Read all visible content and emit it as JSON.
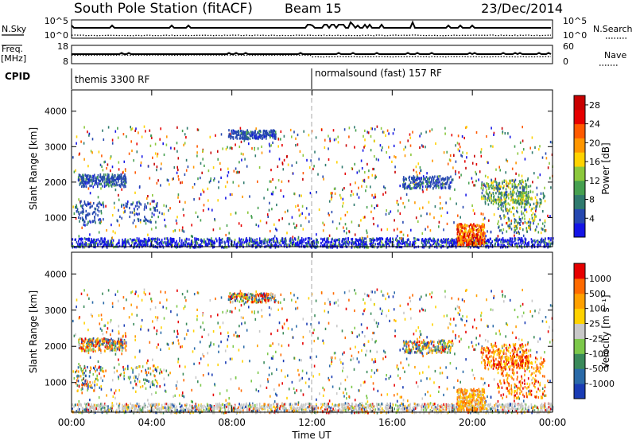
{
  "header": {
    "title": "South Pole Station (fitACF)",
    "beam": "Beam 15",
    "date": "23/Dec/2014"
  },
  "status_panels": {
    "nsky_label": "N.Sky",
    "nsky_tick_top": "10^5",
    "nsky_tick_bottom": "10^0",
    "nsearch_label": "N.Search",
    "nsearch_tick_top": "10^5",
    "nsearch_tick_bottom": "10^0",
    "freq_label": "Freq.",
    "freq_unit": "[MHz]",
    "freq_tick_top": "18",
    "freq_tick_bottom": "8",
    "nave_label": "Nave",
    "nave_tick_top": "60",
    "nave_tick_bottom": "0",
    "cpid_label": "CPID",
    "cpid_segment_1": "themis 3300 RF",
    "cpid_segment_2": "normalsound (fast) 157 RF",
    "cpid_switch_time": "12:00"
  },
  "chart_data": [
    {
      "type": "heatmap",
      "panel": "power",
      "ylabel": "Slant Range [km]",
      "y_ticks": [
        1000,
        2000,
        3000,
        4000
      ],
      "ylim": [
        180,
        4600
      ],
      "x_ticks": [
        "00:00",
        "04:00",
        "08:00",
        "12:00",
        "16:00",
        "20:00",
        "00:00"
      ],
      "xlim_hours": [
        0,
        24
      ],
      "colorbar": {
        "label": "Power [dB]",
        "ticks": [
          4,
          8,
          12,
          16,
          20,
          24,
          28
        ],
        "range": [
          0,
          30
        ],
        "colors": [
          "#1414e6",
          "#2648b0",
          "#2f7a6e",
          "#46a050",
          "#8cc83c",
          "#ffd200",
          "#ff9600",
          "#ff5a00",
          "#e60000",
          "#c80000"
        ]
      }
    },
    {
      "type": "heatmap",
      "panel": "velocity",
      "ylabel": "Slant Range [km]",
      "y_ticks": [
        1000,
        2000,
        3000,
        4000
      ],
      "ylim": [
        180,
        4600
      ],
      "x_ticks": [
        "00:00",
        "04:00",
        "08:00",
        "12:00",
        "16:00",
        "20:00",
        "00:00"
      ],
      "xlim_hours": [
        0,
        24
      ],
      "xlabel": "Time UT",
      "colorbar": {
        "label": "Velocity [m s⁻¹]",
        "ticks": [
          "1000",
          "500",
          "100",
          "25",
          "-25",
          "-100",
          "-500",
          "-1000"
        ],
        "colors": [
          "#1a3cb4",
          "#2a6aa8",
          "#3a8a5a",
          "#7cc84a",
          "#c8c8c8",
          "#ffd200",
          "#ffa000",
          "#ff6a00",
          "#e60000"
        ]
      }
    }
  ]
}
